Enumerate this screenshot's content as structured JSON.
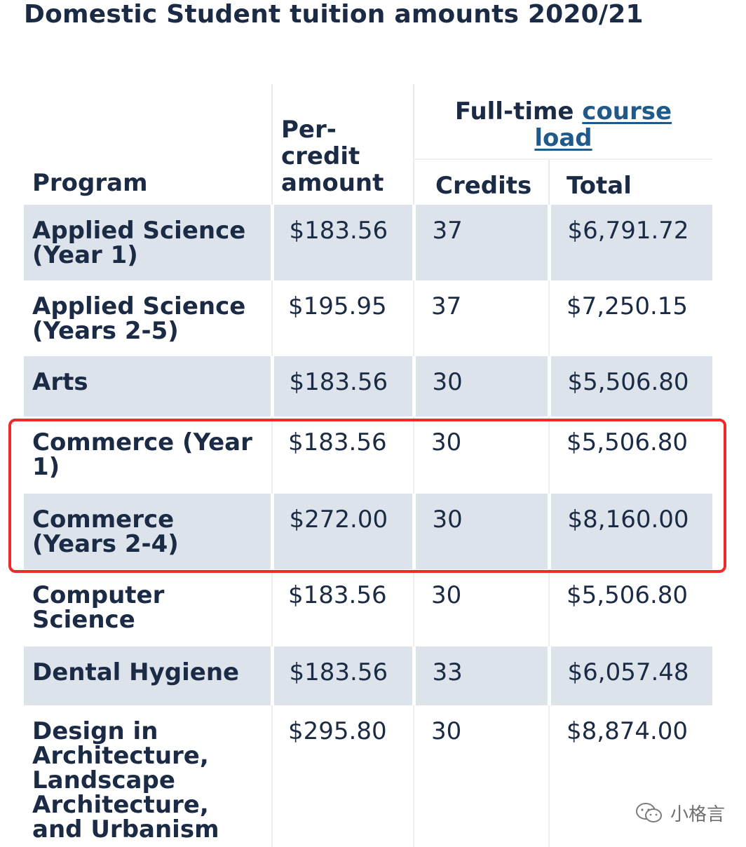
{
  "title": "Domestic Student tuition amounts 2020/21",
  "table": {
    "headers": {
      "program": "Program",
      "per_credit": "Per-credit amount",
      "group_prefix": "Full-time ",
      "group_link": "course load",
      "credits": "Credits",
      "total": "Total"
    },
    "rows": [
      {
        "program": "Applied Science (Year 1)",
        "per_credit": "$183.56",
        "credits": "37",
        "total": "$6,791.72"
      },
      {
        "program": "Applied Science (Years 2-5)",
        "per_credit": "$195.95",
        "credits": "37",
        "total": "$7,250.15"
      },
      {
        "program": "Arts",
        "per_credit": "$183.56",
        "credits": "30",
        "total": "$5,506.80"
      },
      {
        "program": "Commerce (Year 1)",
        "per_credit": "$183.56",
        "credits": "30",
        "total": "$5,506.80"
      },
      {
        "program": "Commerce (Years 2-4)",
        "per_credit": "$272.00",
        "credits": "30",
        "total": "$8,160.00"
      },
      {
        "program": "Computer Science",
        "per_credit": "$183.56",
        "credits": "30",
        "total": "$5,506.80"
      },
      {
        "program": "Dental Hygiene",
        "per_credit": "$183.56",
        "credits": "33",
        "total": "$6,057.48"
      },
      {
        "program": "Design in Architecture, Landscape Architecture, and Urbanism",
        "per_credit": "$295.80",
        "credits": "30",
        "total": "$8,874.00"
      }
    ]
  },
  "watermark": {
    "text": "小格言",
    "icon": "wechat-icon"
  },
  "colors": {
    "highlight": "#ee2a2a",
    "shade": "#dce3ea",
    "link": "#1f5a8a"
  }
}
